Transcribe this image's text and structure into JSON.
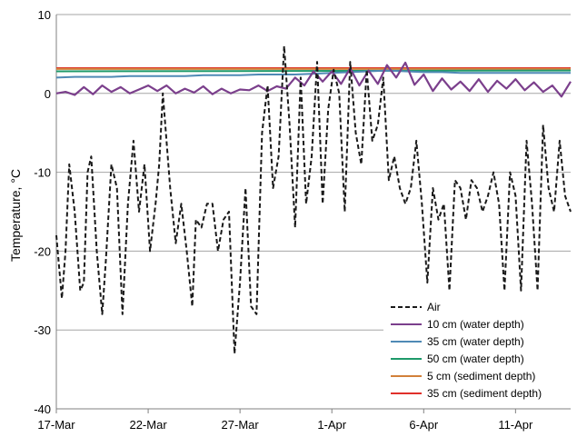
{
  "chart_data": {
    "type": "line",
    "title": "",
    "xlabel": "",
    "ylabel": "Temperature, °C",
    "ylim": [
      -40,
      10
    ],
    "yticks": [
      10,
      0,
      -10,
      -20,
      -30,
      -40
    ],
    "xlim": [
      0,
      28
    ],
    "xticks": [
      {
        "x": 0,
        "label": "17-Mar"
      },
      {
        "x": 5,
        "label": "22-Mar"
      },
      {
        "x": 10,
        "label": "27-Mar"
      },
      {
        "x": 15,
        "label": "1-Apr"
      },
      {
        "x": 20,
        "label": "6-Apr"
      },
      {
        "x": 25,
        "label": "11-Apr"
      }
    ],
    "grid": "horizontal",
    "legend": "bottom-right",
    "series": [
      {
        "name": "Air",
        "color": "#1a1a1a",
        "dash": true,
        "x": [
          0,
          0.3,
          0.5,
          0.7,
          1.0,
          1.3,
          1.5,
          1.7,
          1.9,
          2.2,
          2.5,
          2.7,
          3.0,
          3.3,
          3.6,
          3.9,
          4.2,
          4.5,
          4.8,
          5.1,
          5.4,
          5.6,
          5.8,
          6.2,
          6.5,
          6.8,
          7.1,
          7.4,
          7.6,
          7.9,
          8.2,
          8.5,
          8.8,
          9.1,
          9.4,
          9.7,
          10.0,
          10.3,
          10.6,
          10.9,
          11.2,
          11.5,
          11.8,
          12.1,
          12.4,
          12.7,
          13.0,
          13.3,
          13.6,
          13.9,
          14.2,
          14.5,
          14.8,
          15.1,
          15.4,
          15.7,
          16.0,
          16.3,
          16.6,
          16.9,
          17.2,
          17.5,
          17.8,
          18.1,
          18.4,
          18.7,
          19.0,
          19.3,
          19.6,
          19.9,
          20.2,
          20.5,
          20.8,
          21.1,
          21.4,
          21.7,
          22.0,
          22.3,
          22.6,
          22.9,
          23.2,
          23.5,
          23.8,
          24.1,
          24.4,
          24.7,
          25.0,
          25.3,
          25.6,
          25.9,
          26.2,
          26.5,
          26.8,
          27.1,
          27.4,
          27.7,
          28.0
        ],
        "values": [
          -18,
          -26,
          -20,
          -9,
          -15,
          -25,
          -24,
          -10,
          -8,
          -20,
          -28,
          -21,
          -9,
          -12,
          -28,
          -14,
          -6,
          -15,
          -9,
          -20,
          -14,
          -9,
          0,
          -12,
          -19,
          -14,
          -20,
          -27,
          -16,
          -17,
          -14,
          -14,
          -20,
          -16,
          -15,
          -33,
          -24,
          -12,
          -27,
          -28,
          -5,
          1,
          -12,
          -8,
          6,
          -4,
          -17,
          2,
          -14,
          -8,
          4,
          -14,
          -2,
          3,
          0,
          -15,
          4,
          -5,
          -9,
          3,
          -6,
          -4,
          2,
          -11,
          -8,
          -12,
          -14,
          -12,
          -6,
          -14,
          -24,
          -12,
          -16,
          -14,
          -25,
          -11,
          -12,
          -16,
          -11,
          -12,
          -15,
          -13,
          -10,
          -14,
          -25,
          -10,
          -13,
          -25,
          -6,
          -14,
          -25,
          -4,
          -12,
          -15,
          -6,
          -13,
          -15
        ]
      },
      {
        "name": "10 cm (water depth)",
        "color": "#7b3f8c",
        "dash": false,
        "x": [
          0,
          0.5,
          1.0,
          1.5,
          2.0,
          2.5,
          3.0,
          3.5,
          4.0,
          4.5,
          5.0,
          5.5,
          6.0,
          6.5,
          7.0,
          7.5,
          8.0,
          8.5,
          9.0,
          9.5,
          10.0,
          10.5,
          11.0,
          11.5,
          12.0,
          12.5,
          13.0,
          13.5,
          14.0,
          14.5,
          15.0,
          15.5,
          16.0,
          16.5,
          17.0,
          17.5,
          18.0,
          18.5,
          19.0,
          19.5,
          20.0,
          20.5,
          21.0,
          21.5,
          22.0,
          22.5,
          23.0,
          23.5,
          24.0,
          24.5,
          25.0,
          25.5,
          26.0,
          26.5,
          27.0,
          27.5,
          28.0
        ],
        "values": [
          0.0,
          0.2,
          -0.2,
          0.8,
          -0.1,
          1.0,
          0.2,
          0.8,
          0.0,
          0.5,
          1.0,
          0.3,
          1.0,
          0.0,
          0.6,
          0.1,
          0.9,
          -0.1,
          0.6,
          0.0,
          0.5,
          0.4,
          1.0,
          0.3,
          0.9,
          0.6,
          2.0,
          1.0,
          2.8,
          1.5,
          2.8,
          1.2,
          3.2,
          1.0,
          2.9,
          1.2,
          3.6,
          2.0,
          3.9,
          1.1,
          2.4,
          0.3,
          1.9,
          0.5,
          1.5,
          0.3,
          1.8,
          0.2,
          1.6,
          0.6,
          1.8,
          0.4,
          1.4,
          0.2,
          1.0,
          -0.4,
          1.5
        ]
      },
      {
        "name": "35 cm (water depth)",
        "color": "#4f8ab5",
        "dash": false,
        "x": [
          0,
          1,
          2,
          3,
          4,
          5,
          6,
          7,
          8,
          9,
          10,
          11,
          12,
          13,
          14,
          15,
          16,
          17,
          18,
          19,
          20,
          21,
          22,
          23,
          24,
          25,
          26,
          27,
          28
        ],
        "values": [
          2.0,
          2.1,
          2.1,
          2.1,
          2.2,
          2.2,
          2.2,
          2.2,
          2.3,
          2.3,
          2.3,
          2.4,
          2.4,
          2.4,
          2.5,
          2.6,
          2.7,
          2.8,
          2.9,
          2.8,
          2.7,
          2.7,
          2.6,
          2.6,
          2.6,
          2.6,
          2.6,
          2.6,
          2.6
        ]
      },
      {
        "name": "50 cm (water depth)",
        "color": "#1e9a6a",
        "dash": false,
        "x": [
          0,
          28
        ],
        "values": [
          2.8,
          2.9
        ]
      },
      {
        "name": "5 cm (sediment depth)",
        "color": "#d2803a",
        "dash": false,
        "x": [
          0,
          28
        ],
        "values": [
          3.1,
          3.1
        ]
      },
      {
        "name": "35 cm (sediment depth)",
        "color": "#e0302a",
        "dash": false,
        "x": [
          0,
          28
        ],
        "values": [
          3.2,
          3.2
        ]
      }
    ]
  }
}
